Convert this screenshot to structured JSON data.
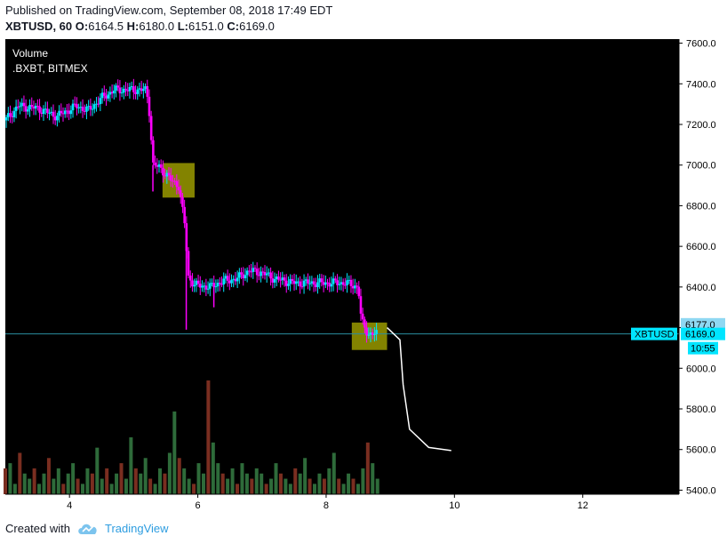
{
  "header": {
    "published": "Published on TradingView.com, September 08, 2018 17:49 EDT",
    "symbol": "XBTUSD, 60",
    "o_label": "O:",
    "o": "6164.5",
    "h_label": "H:",
    "h": "6180.0",
    "l_label": "L:",
    "l": "6151.0",
    "c_label": "C:",
    "c": "6169.0"
  },
  "legend": {
    "volume": "Volume",
    "source": ".BXBT, BITMEX"
  },
  "footer": {
    "created": "Created with",
    "brand": "TradingView"
  },
  "colors": {
    "background": "#000000",
    "up": "#00e5ff",
    "down": "#ff00ff",
    "volume_up": "#2e6b3a",
    "volume_down": "#7a2e20",
    "highlight": "#9a9a00",
    "price_line": "#2a8ea0",
    "projection": "#ffffff",
    "axis_text": "#000000"
  },
  "chart_data": {
    "type": "candlestick",
    "xlim": [
      3.0,
      13.5
    ],
    "ylim": [
      5380,
      7620
    ],
    "x_ticks": [
      "4",
      "6",
      "8",
      "10",
      "12"
    ],
    "x_tick_values": [
      4,
      6,
      8,
      10,
      12
    ],
    "y_ticks": [
      "5400.0",
      "5600.0",
      "5800.0",
      "6000.0",
      "6200.0",
      "6400.0",
      "6600.0",
      "6800.0",
      "7000.0",
      "7200.0",
      "7400.0",
      "7600.0"
    ],
    "y_tick_values": [
      5400,
      5600,
      5800,
      6000,
      6200,
      6400,
      6600,
      6800,
      7000,
      7200,
      7400,
      7600
    ],
    "price_labels": [
      {
        "text": "6177.0",
        "value": 6177
      },
      {
        "text": "6169.0",
        "value": 6169
      },
      {
        "text": "10:55",
        "value": 6169
      }
    ],
    "series_label": "XBTUSD",
    "last_price": 6169.0,
    "price_path": [
      [
        3.0,
        7220
      ],
      [
        3.2,
        7290
      ],
      [
        3.5,
        7280
      ],
      [
        3.8,
        7240
      ],
      [
        4.1,
        7290
      ],
      [
        4.3,
        7270
      ],
      [
        4.5,
        7330
      ],
      [
        4.7,
        7370
      ],
      [
        5.0,
        7370
      ],
      [
        5.2,
        7370
      ],
      [
        5.25,
        7250
      ],
      [
        5.3,
        7000
      ],
      [
        5.4,
        6990
      ],
      [
        5.6,
        6920
      ],
      [
        5.7,
        6900
      ],
      [
        5.8,
        6700
      ],
      [
        5.85,
        6450
      ],
      [
        5.95,
        6410
      ],
      [
        6.2,
        6400
      ],
      [
        6.4,
        6430
      ],
      [
        6.6,
        6440
      ],
      [
        6.8,
        6480
      ],
      [
        7.0,
        6470
      ],
      [
        7.2,
        6440
      ],
      [
        7.5,
        6420
      ],
      [
        7.8,
        6420
      ],
      [
        8.0,
        6420
      ],
      [
        8.3,
        6420
      ],
      [
        8.5,
        6400
      ],
      [
        8.55,
        6230
      ],
      [
        8.65,
        6170
      ],
      [
        8.8,
        6169
      ]
    ],
    "volume": [
      5,
      6,
      2,
      8,
      4,
      3,
      5,
      2,
      4,
      7,
      3,
      5,
      2,
      4,
      6,
      3,
      2,
      5,
      4,
      9,
      3,
      5,
      2,
      4,
      6,
      3,
      11,
      5,
      4,
      7,
      3,
      2,
      5,
      4,
      8,
      16,
      7,
      5,
      3,
      2,
      6,
      4,
      22,
      10,
      6,
      4,
      3,
      5,
      2,
      6,
      4,
      3,
      5,
      4,
      2,
      3,
      6,
      4,
      3,
      2,
      5,
      4,
      7,
      3,
      2,
      4,
      3,
      5,
      8,
      3,
      2,
      4,
      3,
      2,
      5,
      10,
      6,
      3
    ],
    "highlights": [
      {
        "x1": 5.45,
        "x2": 5.95,
        "y1": 6840,
        "y2": 7010
      },
      {
        "x1": 8.4,
        "x2": 8.95,
        "y1": 6090,
        "y2": 6225
      }
    ],
    "projection": [
      [
        8.95,
        6200
      ],
      [
        9.15,
        6140
      ],
      [
        9.2,
        5920
      ],
      [
        9.3,
        5700
      ],
      [
        9.6,
        5610
      ],
      [
        9.95,
        5595
      ]
    ]
  }
}
